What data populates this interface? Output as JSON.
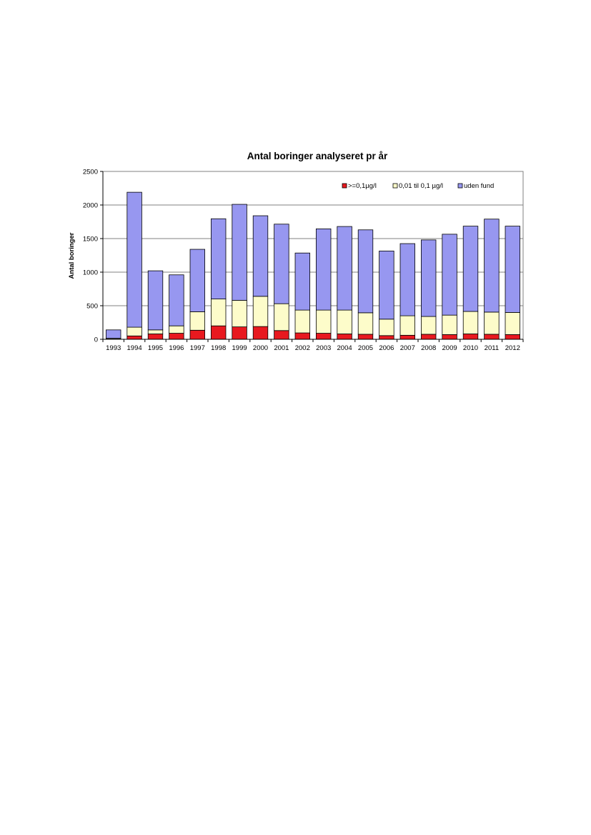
{
  "chart_data": {
    "type": "bar",
    "stacked": true,
    "title": "Antal boringer analyseret pr år",
    "xlabel": "",
    "ylabel": "Antal boringer",
    "ylim": [
      0,
      2500
    ],
    "yticks": [
      0,
      500,
      1000,
      1500,
      2000,
      2500
    ],
    "grid": true,
    "legend": "top-right",
    "categories": [
      "1993",
      "1994",
      "1995",
      "1996",
      "1997",
      "1998",
      "1999",
      "2000",
      "2001",
      "2002",
      "2003",
      "2004",
      "2005",
      "2006",
      "2007",
      "2008",
      "2009",
      "2010",
      "2011",
      "2012"
    ],
    "series": [
      {
        "name": ">=0,1µg/l",
        "color": "#e8191f",
        "values": [
          5,
          50,
          80,
          90,
          135,
          200,
          185,
          190,
          130,
          95,
          90,
          80,
          75,
          55,
          60,
          75,
          70,
          80,
          75,
          70
        ]
      },
      {
        "name": "0,01 til 0,1 µg/l",
        "color": "#fdfcca",
        "values": [
          10,
          130,
          60,
          110,
          275,
          400,
          395,
          450,
          400,
          340,
          345,
          355,
          320,
          245,
          290,
          265,
          290,
          335,
          330,
          330
        ]
      },
      {
        "name": "uden fund",
        "color": "#9797f0",
        "values": [
          125,
          2010,
          880,
          760,
          930,
          1195,
          1430,
          1200,
          1185,
          850,
          1210,
          1245,
          1235,
          1015,
          1075,
          1140,
          1205,
          1270,
          1385,
          1285
        ]
      }
    ]
  }
}
